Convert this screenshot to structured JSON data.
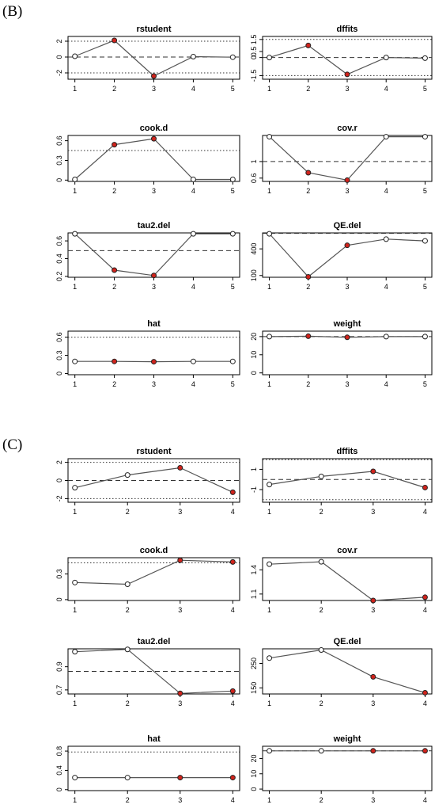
{
  "figure": {
    "panel_b_label": "(B)",
    "panel_c_label": "(C)"
  },
  "chart_data": [
    {
      "group": "B",
      "type": "line",
      "title": "rstudent",
      "x": [
        1,
        2,
        3,
        4,
        5
      ],
      "values": [
        0.1,
        2.1,
        -2.4,
        0.05,
        -0.02
      ],
      "highlight": [
        false,
        true,
        true,
        false,
        false
      ],
      "xticks": [
        "1",
        "2",
        "3",
        "4",
        "5"
      ],
      "yticks": [
        -2,
        0,
        2
      ],
      "ylim": [
        -2.8,
        2.6
      ],
      "refs": [
        {
          "y": 0,
          "style": "dashed"
        },
        {
          "y": 2,
          "style": "dotted"
        },
        {
          "y": -2,
          "style": "dotted"
        }
      ]
    },
    {
      "group": "B",
      "type": "line",
      "title": "dffits",
      "x": [
        1,
        2,
        3,
        4,
        5
      ],
      "values": [
        0,
        1.0,
        -1.4,
        0,
        -0.05
      ],
      "highlight": [
        false,
        true,
        true,
        false,
        false
      ],
      "xticks": [
        "1",
        "2",
        "3",
        "4",
        "5"
      ],
      "yticks": [
        -1.5,
        0,
        0.5,
        1.5
      ],
      "ylim": [
        -1.8,
        1.75
      ],
      "refs": [
        {
          "y": 0,
          "style": "dashed"
        },
        {
          "y": 1.5,
          "style": "dotted"
        },
        {
          "y": -1.5,
          "style": "dotted"
        }
      ]
    },
    {
      "group": "B",
      "type": "line",
      "title": "cook.d",
      "x": [
        1,
        2,
        3,
        4,
        5
      ],
      "values": [
        0.01,
        0.54,
        0.63,
        0.01,
        0.01
      ],
      "highlight": [
        false,
        true,
        true,
        false,
        false
      ],
      "xticks": [
        "1",
        "2",
        "3",
        "4",
        "5"
      ],
      "yticks": [
        0,
        0.3,
        0.6
      ],
      "ylim": [
        -0.02,
        0.68
      ],
      "refs": [
        {
          "y": 0.45,
          "style": "dotted"
        }
      ]
    },
    {
      "group": "B",
      "type": "line",
      "title": "cov.r",
      "x": [
        1,
        2,
        3,
        4,
        5
      ],
      "values": [
        1.6,
        0.73,
        0.55,
        1.6,
        1.6
      ],
      "highlight": [
        false,
        true,
        true,
        false,
        false
      ],
      "xticks": [
        "1",
        "2",
        "3",
        "4",
        "5"
      ],
      "yticks": [
        0.6,
        1.0
      ],
      "ylim": [
        0.52,
        1.63
      ],
      "refs": [
        {
          "y": 1.0,
          "style": "dashed"
        }
      ]
    },
    {
      "group": "B",
      "type": "line",
      "title": "tau2.del",
      "x": [
        1,
        2,
        3,
        4,
        5
      ],
      "values": [
        0.68,
        0.27,
        0.21,
        0.68,
        0.68
      ],
      "highlight": [
        false,
        true,
        true,
        false,
        false
      ],
      "xticks": [
        "1",
        "2",
        "3",
        "4",
        "5"
      ],
      "yticks": [
        0.2,
        0.4,
        0.6
      ],
      "ylim": [
        0.19,
        0.69
      ],
      "refs": [
        {
          "y": 0.49,
          "style": "dashed"
        }
      ]
    },
    {
      "group": "B",
      "type": "line",
      "title": "QE.del",
      "x": [
        1,
        2,
        3,
        4,
        5
      ],
      "values": [
        570,
        85,
        440,
        510,
        490
      ],
      "highlight": [
        false,
        true,
        true,
        false,
        false
      ],
      "xticks": [
        "1",
        "2",
        "3",
        "4",
        "5"
      ],
      "yticks": [
        100,
        400
      ],
      "ylim": [
        80,
        580
      ],
      "refs": [
        {
          "y": 575,
          "style": "dashed"
        }
      ]
    },
    {
      "group": "B",
      "type": "line",
      "title": "hat",
      "x": [
        1,
        2,
        3,
        4,
        5
      ],
      "values": [
        0.2,
        0.2,
        0.195,
        0.2,
        0.2
      ],
      "highlight": [
        false,
        true,
        true,
        false,
        false
      ],
      "xticks": [
        "1",
        "2",
        "3",
        "4",
        "5"
      ],
      "yticks": [
        0,
        0.3,
        0.6
      ],
      "ylim": [
        -0.02,
        0.7
      ],
      "refs": [
        {
          "y": 0.6,
          "style": "dotted"
        }
      ]
    },
    {
      "group": "B",
      "type": "line",
      "title": "weight",
      "x": [
        1,
        2,
        3,
        4,
        5
      ],
      "values": [
        20,
        20.2,
        19.6,
        20,
        20
      ],
      "highlight": [
        false,
        true,
        true,
        false,
        false
      ],
      "xticks": [
        "1",
        "2",
        "3",
        "4",
        "5"
      ],
      "yticks": [
        0,
        10,
        20
      ],
      "ylim": [
        -1,
        23
      ],
      "refs": [
        {
          "y": 20,
          "style": "dashed"
        }
      ]
    },
    {
      "group": "C",
      "type": "line",
      "title": "rstudent",
      "x": [
        1,
        2,
        3,
        4
      ],
      "values": [
        -0.8,
        0.6,
        1.4,
        -1.3
      ],
      "highlight": [
        false,
        false,
        true,
        true
      ],
      "xticks": [
        "1",
        "2",
        "3",
        "4"
      ],
      "yticks": [
        -2,
        0,
        2
      ],
      "ylim": [
        -2.4,
        2.4
      ],
      "refs": [
        {
          "y": 0,
          "style": "dashed"
        },
        {
          "y": 2,
          "style": "dotted"
        },
        {
          "y": -2,
          "style": "dotted"
        }
      ]
    },
    {
      "group": "C",
      "type": "line",
      "title": "dffits",
      "x": [
        1,
        2,
        3,
        4
      ],
      "values": [
        -0.5,
        0.3,
        0.8,
        -0.8
      ],
      "highlight": [
        false,
        false,
        true,
        true
      ],
      "xticks": [
        "1",
        "2",
        "3",
        "4"
      ],
      "yticks": [
        -1,
        1
      ],
      "ylim": [
        -2.25,
        2.05
      ],
      "refs": [
        {
          "y": 0,
          "style": "dashed"
        },
        {
          "y": 1.95,
          "style": "dotted"
        },
        {
          "y": -2.0,
          "style": "dotted"
        }
      ]
    },
    {
      "group": "C",
      "type": "line",
      "title": "cook.d",
      "x": [
        1,
        2,
        3,
        4
      ],
      "values": [
        0.2,
        0.18,
        0.46,
        0.44
      ],
      "highlight": [
        false,
        false,
        true,
        true
      ],
      "xticks": [
        "1",
        "2",
        "3",
        "4"
      ],
      "yticks": [
        0,
        0.3
      ],
      "ylim": [
        -0.01,
        0.49
      ],
      "refs": [
        {
          "y": 0.43,
          "style": "dotted"
        }
      ]
    },
    {
      "group": "C",
      "type": "line",
      "title": "cov.r",
      "x": [
        1,
        2,
        3,
        4
      ],
      "values": [
        1.47,
        1.5,
        1.02,
        1.06
      ],
      "highlight": [
        false,
        false,
        true,
        true
      ],
      "xticks": [
        "1",
        "2",
        "3",
        "4"
      ],
      "yticks": [
        1.1,
        1.4
      ],
      "ylim": [
        1.02,
        1.55
      ],
      "refs": []
    },
    {
      "group": "C",
      "type": "line",
      "title": "tau2.del",
      "x": [
        1,
        2,
        3,
        4
      ],
      "values": [
        1.03,
        1.05,
        0.67,
        0.69
      ],
      "highlight": [
        false,
        false,
        true,
        true
      ],
      "xticks": [
        "1",
        "2",
        "3",
        "4"
      ],
      "yticks": [
        0.7,
        0.9
      ],
      "ylim": [
        0.665,
        1.055
      ],
      "refs": [
        {
          "y": 0.86,
          "style": "dashed"
        }
      ]
    },
    {
      "group": "C",
      "type": "line",
      "title": "QE.del",
      "x": [
        1,
        2,
        3,
        4
      ],
      "values": [
        272,
        305,
        195,
        130
      ],
      "highlight": [
        false,
        false,
        true,
        true
      ],
      "xticks": [
        "1",
        "2",
        "3",
        "4"
      ],
      "yticks": [
        150,
        250
      ],
      "ylim": [
        125,
        310
      ],
      "refs": []
    },
    {
      "group": "C",
      "type": "line",
      "title": "hat",
      "x": [
        1,
        2,
        3,
        4
      ],
      "values": [
        0.25,
        0.25,
        0.25,
        0.25
      ],
      "highlight": [
        false,
        false,
        true,
        true
      ],
      "xticks": [
        "1",
        "2",
        "3",
        "4"
      ],
      "yticks": [
        0,
        0.4,
        0.8
      ],
      "ylim": [
        -0.02,
        0.9
      ],
      "refs": [
        {
          "y": 0.78,
          "style": "dotted"
        }
      ]
    },
    {
      "group": "C",
      "type": "line",
      "title": "weight",
      "x": [
        1,
        2,
        3,
        4
      ],
      "values": [
        25,
        25,
        25,
        25
      ],
      "highlight": [
        false,
        false,
        true,
        true
      ],
      "xticks": [
        "1",
        "2",
        "3",
        "4"
      ],
      "yticks": [
        0,
        10,
        20
      ],
      "ylim": [
        -1,
        28
      ],
      "refs": [
        {
          "y": 25,
          "style": "dashed"
        }
      ]
    }
  ]
}
